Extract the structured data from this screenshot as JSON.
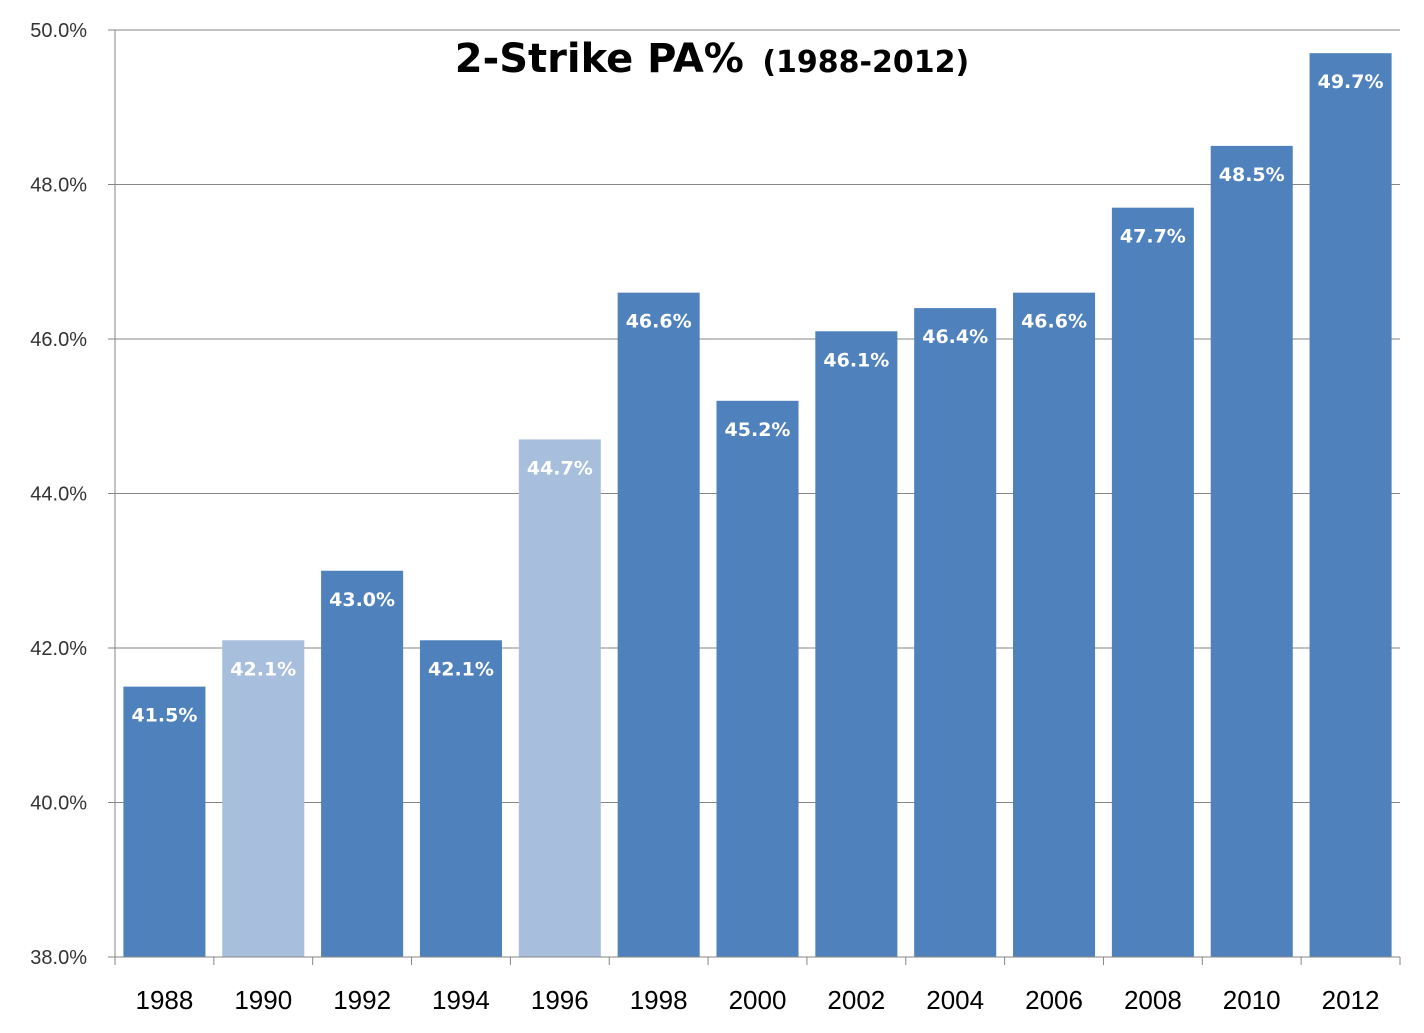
{
  "chart_data": {
    "type": "bar",
    "title": "2-Strike PA%",
    "subtitle": "(1988-2012)",
    "categories": [
      "1988",
      "1990",
      "1992",
      "1994",
      "1996",
      "1998",
      "2000",
      "2002",
      "2004",
      "2006",
      "2008",
      "2010",
      "2012"
    ],
    "values": [
      41.5,
      42.1,
      43.0,
      42.1,
      44.7,
      46.6,
      45.2,
      46.1,
      46.4,
      46.6,
      47.7,
      48.5,
      49.7
    ],
    "value_labels": [
      "41.5%",
      "42.1%",
      "43.0%",
      "42.1%",
      "44.7%",
      "46.6%",
      "45.2%",
      "46.1%",
      "46.4%",
      "46.6%",
      "47.7%",
      "48.5%",
      "49.7%"
    ],
    "highlighted": [
      false,
      true,
      false,
      false,
      true,
      false,
      false,
      false,
      false,
      false,
      false,
      false,
      false
    ],
    "ylim": [
      38,
      50
    ],
    "yticks": [
      38,
      40,
      42,
      44,
      46,
      48,
      50
    ],
    "ytick_labels": [
      "38.0%",
      "40.0%",
      "42.0%",
      "44.0%",
      "46.0%",
      "48.0%",
      "50.0%"
    ],
    "xlabel": "",
    "ylabel": "",
    "grid": true,
    "colors": {
      "bar": "#4f81bd",
      "bar_highlight": "#a7bfdd",
      "grid": "#868686",
      "label": "#ffffff"
    }
  }
}
